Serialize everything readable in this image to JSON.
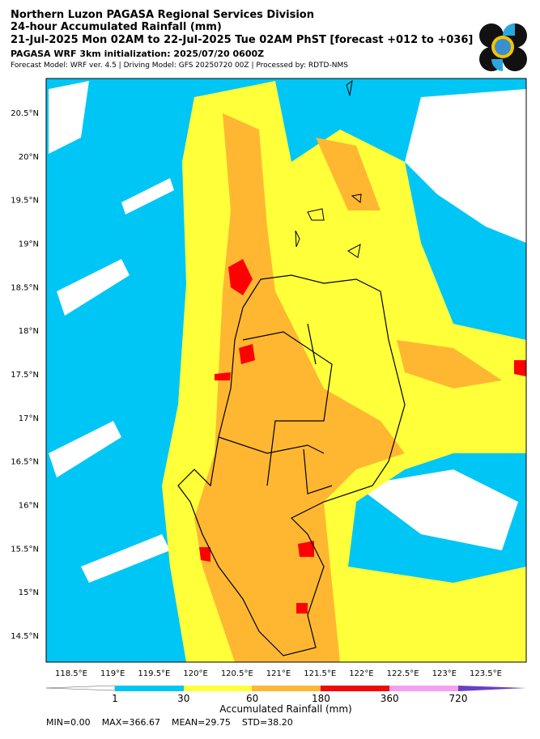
{
  "header": {
    "title": "Northern Luzon PAGASA Regional Services Division",
    "subtitle": "24-hour Accumulated Rainfall (mm)",
    "period": "21-Jul-2025 Mon 02AM to 22-Jul-2025 Tue 02AM PhST [forecast +012 to +036]",
    "model_init": "PAGASA WRF 3km initialization: 2025/07/20 0600Z",
    "model_info": "Forecast Model: WRF ver. 4.5 | Driving Model: GFS 20250720 00Z | Processed by: RDTD-NMS"
  },
  "map": {
    "lat_labels": [
      "20.5°N",
      "20°N",
      "19.5°N",
      "19°N",
      "18.5°N",
      "18°N",
      "17.5°N",
      "17°N",
      "16.5°N",
      "16°N",
      "15.5°N",
      "15°N",
      "14.5°N"
    ],
    "lon_labels": [
      "118.5°E",
      "119°E",
      "119.5°E",
      "120°E",
      "120.5°E",
      "121°E",
      "121.5°E",
      "122°E",
      "122.5°E",
      "123°E",
      "123.5°E"
    ]
  },
  "colorbar": {
    "labels": [
      "1",
      "30",
      "60",
      "180",
      "360",
      "720"
    ],
    "title": "Accumulated Rainfall (mm)"
  },
  "stats": [
    "MIN=0.00",
    "MAX=366.67",
    "MEAN=29.75",
    "STD=38.20"
  ]
}
